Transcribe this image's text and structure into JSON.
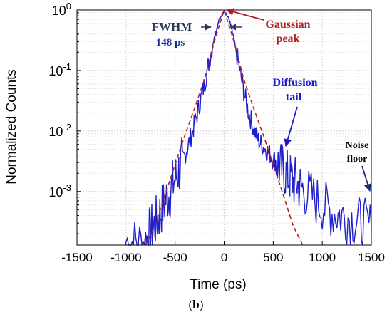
{
  "chart_data": {
    "type": "line",
    "xlabel": "Time (ps)",
    "ylabel": "Normalized Counts",
    "xlim": [
      -1500,
      1500
    ],
    "ylim": [
      0.00013,
      1.0
    ],
    "y_scale": "log",
    "grid": true,
    "x_ticks": [
      -1500,
      -1000,
      -500,
      0,
      500,
      1000,
      1500
    ],
    "x_tick_labels": [
      "-1500",
      "-1000",
      "-500",
      "0",
      "500",
      "1000",
      "1500"
    ],
    "y_ticks": [
      1,
      0.1,
      0.01,
      0.001
    ],
    "y_tick_labels": [
      {
        "base": "10",
        "exp": "0"
      },
      {
        "base": "10",
        "exp": "-1"
      },
      {
        "base": "10",
        "exp": "-2"
      },
      {
        "base": "10",
        "exp": "-3"
      }
    ],
    "series": [
      {
        "color": "#1f1fcc",
        "style": "solid",
        "x": [
          -1000,
          -900,
          -800,
          -750,
          -700,
          -650,
          -600,
          -550,
          -500,
          -450,
          -400,
          -350,
          -300,
          -250,
          -200,
          -150,
          -100,
          -74,
          -50,
          0,
          50,
          74,
          100,
          150,
          200,
          250,
          300,
          350,
          400,
          450,
          500,
          550,
          600,
          650,
          700,
          750,
          800,
          900,
          1000,
          1100,
          1200,
          1300,
          1400,
          1500
        ],
        "y": [
          0.00015,
          0.00014,
          0.00015,
          0.00022,
          0.0003,
          0.00045,
          0.0007,
          0.001,
          0.0016,
          0.0025,
          0.004,
          0.007,
          0.013,
          0.028,
          0.06,
          0.15,
          0.35,
          0.5,
          0.7,
          1.0,
          0.7,
          0.5,
          0.33,
          0.12,
          0.045,
          0.02,
          0.011,
          0.007,
          0.0055,
          0.0045,
          0.0035,
          0.0028,
          0.0022,
          0.0018,
          0.0015,
          0.0013,
          0.0011,
          0.0008,
          0.0006,
          0.00045,
          0.0004,
          0.00035,
          0.0003,
          0.00025
        ]
      },
      {
        "color": "#b02020",
        "style": "dashed",
        "x": [
          -800,
          -700,
          -600,
          -500,
          -400,
          -300,
          -200,
          -100,
          0,
          100,
          200,
          300,
          400,
          500,
          600,
          700,
          800
        ],
        "y": [
          0.00013,
          0.00028,
          0.0009,
          0.0028,
          0.0085,
          0.024,
          0.072,
          0.3,
          1.0,
          0.3,
          0.072,
          0.024,
          0.0085,
          0.0028,
          0.0009,
          0.00028,
          0.00013
        ]
      }
    ],
    "annotations": [
      {
        "text": "FWHM",
        "color": "#2a3a5a"
      },
      {
        "text": "148 ps",
        "color": "#1a2aa0"
      },
      {
        "text": "Gaussian",
        "color": "#b02020"
      },
      {
        "text": "peak",
        "color": "#b02020"
      },
      {
        "text": "Diffusion",
        "color": "#1a1acc"
      },
      {
        "text": "tail",
        "color": "#1a1acc"
      },
      {
        "text": "Noise",
        "color": "#000000"
      },
      {
        "text": "floor",
        "color": "#000000"
      }
    ]
  },
  "caption": {
    "open": "(",
    "label": "b",
    "close": ")"
  }
}
